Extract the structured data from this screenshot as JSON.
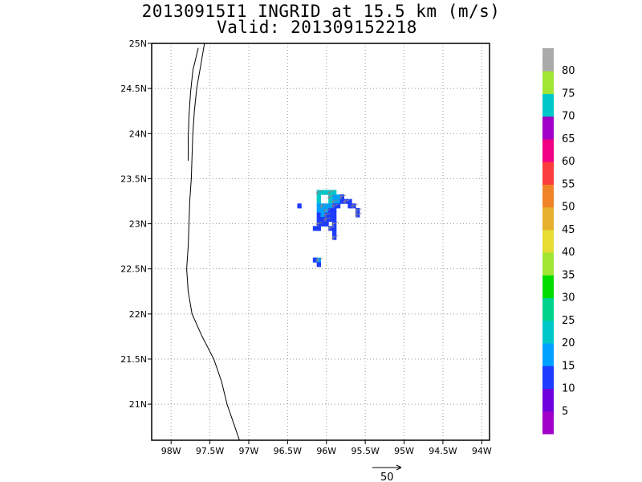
{
  "title": "20130915I1 INGRID at 15.5 km (m/s)",
  "subtitle": "Valid: 201309152218",
  "map": {
    "lon_range": [
      -98.25,
      -93.9
    ],
    "lat_range": [
      20.6,
      25.0
    ],
    "lon_ticks": [
      "98W",
      "97.5W",
      "97W",
      "96.5W",
      "96W",
      "95.5W",
      "95W",
      "94.5W",
      "94W"
    ],
    "lon_tick_values": [
      -98.0,
      -97.5,
      -97.0,
      -96.5,
      -96.0,
      -95.5,
      -95.0,
      -94.5,
      -94.0
    ],
    "lat_ticks": [
      "21N",
      "21.5N",
      "22N",
      "22.5N",
      "23N",
      "23.5N",
      "24N",
      "24.5N",
      "25N"
    ],
    "lat_tick_values": [
      21.0,
      21.5,
      22.0,
      22.5,
      23.0,
      23.5,
      24.0,
      24.5,
      25.0
    ],
    "grid": "dotted",
    "coastline": [
      [
        -97.57,
        25.0
      ],
      [
        -97.62,
        24.75
      ],
      [
        -97.67,
        24.5
      ],
      [
        -97.7,
        24.25
      ],
      [
        -97.72,
        24.0
      ],
      [
        -97.73,
        23.75
      ],
      [
        -97.74,
        23.5
      ],
      [
        -97.76,
        23.25
      ],
      [
        -97.77,
        23.0
      ],
      [
        -97.78,
        22.75
      ],
      [
        -97.8,
        22.5
      ],
      [
        -97.78,
        22.25
      ],
      [
        -97.73,
        22.0
      ],
      [
        -97.6,
        21.75
      ],
      [
        -97.45,
        21.5
      ],
      [
        -97.35,
        21.25
      ],
      [
        -97.28,
        21.0
      ],
      [
        -97.18,
        20.75
      ],
      [
        -97.12,
        20.6
      ]
    ],
    "lagoon": [
      [
        -97.65,
        24.95
      ],
      [
        -97.72,
        24.7
      ],
      [
        -97.75,
        24.45
      ],
      [
        -97.77,
        24.2
      ],
      [
        -97.78,
        23.95
      ],
      [
        -97.78,
        23.7
      ]
    ]
  },
  "wind_cells": [
    {
      "lon": -96.1,
      "lat": 23.35,
      "speed": 20
    },
    {
      "lon": -96.05,
      "lat": 23.35,
      "speed": 20
    },
    {
      "lon": -96.0,
      "lat": 23.35,
      "speed": 20
    },
    {
      "lon": -95.95,
      "lat": 23.35,
      "speed": 20
    },
    {
      "lon": -95.9,
      "lat": 23.35,
      "speed": 20
    },
    {
      "lon": -96.1,
      "lat": 23.3,
      "speed": 20
    },
    {
      "lon": -95.95,
      "lat": 23.3,
      "speed": 20
    },
    {
      "lon": -95.9,
      "lat": 23.3,
      "speed": 15
    },
    {
      "lon": -95.85,
      "lat": 23.3,
      "speed": 15
    },
    {
      "lon": -95.8,
      "lat": 23.3,
      "speed": 10
    },
    {
      "lon": -96.1,
      "lat": 23.25,
      "speed": 20
    },
    {
      "lon": -95.95,
      "lat": 23.25,
      "speed": 20
    },
    {
      "lon": -95.9,
      "lat": 23.25,
      "speed": 15
    },
    {
      "lon": -95.85,
      "lat": 23.25,
      "speed": 15
    },
    {
      "lon": -95.8,
      "lat": 23.25,
      "speed": 10
    },
    {
      "lon": -95.75,
      "lat": 23.25,
      "speed": 10
    },
    {
      "lon": -95.7,
      "lat": 23.25,
      "speed": 10
    },
    {
      "lon": -96.1,
      "lat": 23.2,
      "speed": 15
    },
    {
      "lon": -96.05,
      "lat": 23.2,
      "speed": 15
    },
    {
      "lon": -96.0,
      "lat": 23.2,
      "speed": 15
    },
    {
      "lon": -95.95,
      "lat": 23.2,
      "speed": 15
    },
    {
      "lon": -95.9,
      "lat": 23.2,
      "speed": 10
    },
    {
      "lon": -95.85,
      "lat": 23.2,
      "speed": 10
    },
    {
      "lon": -95.7,
      "lat": 23.2,
      "speed": 10
    },
    {
      "lon": -95.65,
      "lat": 23.2,
      "speed": 10
    },
    {
      "lon": -96.1,
      "lat": 23.15,
      "speed": 15
    },
    {
      "lon": -96.05,
      "lat": 23.15,
      "speed": 15
    },
    {
      "lon": -96.0,
      "lat": 23.15,
      "speed": 15
    },
    {
      "lon": -95.95,
      "lat": 23.15,
      "speed": 10
    },
    {
      "lon": -95.9,
      "lat": 23.15,
      "speed": 10
    },
    {
      "lon": -95.6,
      "lat": 23.15,
      "speed": 10
    },
    {
      "lon": -96.1,
      "lat": 23.1,
      "speed": 10
    },
    {
      "lon": -96.05,
      "lat": 23.1,
      "speed": 15
    },
    {
      "lon": -96.0,
      "lat": 23.1,
      "speed": 10
    },
    {
      "lon": -95.95,
      "lat": 23.1,
      "speed": 10
    },
    {
      "lon": -95.9,
      "lat": 23.1,
      "speed": 10
    },
    {
      "lon": -95.6,
      "lat": 23.1,
      "speed": 10
    },
    {
      "lon": -96.1,
      "lat": 23.05,
      "speed": 10
    },
    {
      "lon": -96.05,
      "lat": 23.05,
      "speed": 10
    },
    {
      "lon": -96.0,
      "lat": 23.05,
      "speed": 10
    },
    {
      "lon": -95.95,
      "lat": 23.05,
      "speed": 10
    },
    {
      "lon": -95.9,
      "lat": 23.05,
      "speed": 10
    },
    {
      "lon": -96.1,
      "lat": 23.0,
      "speed": 10
    },
    {
      "lon": -96.05,
      "lat": 23.0,
      "speed": 10
    },
    {
      "lon": -96.0,
      "lat": 23.0,
      "speed": 10
    },
    {
      "lon": -95.9,
      "lat": 23.0,
      "speed": 10
    },
    {
      "lon": -96.15,
      "lat": 22.95,
      "speed": 10
    },
    {
      "lon": -96.1,
      "lat": 22.95,
      "speed": 10
    },
    {
      "lon": -95.95,
      "lat": 22.95,
      "speed": 10
    },
    {
      "lon": -95.9,
      "lat": 22.95,
      "speed": 10
    },
    {
      "lon": -95.9,
      "lat": 22.9,
      "speed": 10
    },
    {
      "lon": -95.9,
      "lat": 22.85,
      "speed": 10
    },
    {
      "lon": -96.35,
      "lat": 23.2,
      "speed": 10
    },
    {
      "lon": -96.15,
      "lat": 22.6,
      "speed": 10
    },
    {
      "lon": -96.1,
      "lat": 22.6,
      "speed": 15
    },
    {
      "lon": -96.1,
      "lat": 22.55,
      "speed": 10
    }
  ],
  "colorbar": {
    "levels": [
      "5",
      "10",
      "15",
      "20",
      "25",
      "30",
      "35",
      "40",
      "45",
      "50",
      "55",
      "60",
      "65",
      "70",
      "75",
      "80"
    ],
    "colors": [
      "#a000c8",
      "#6e00dc",
      "#1e3cff",
      "#00a0ff",
      "#00c8c8",
      "#00d28c",
      "#00dc00",
      "#a0e632",
      "#e6dc32",
      "#e6af2d",
      "#f08228",
      "#fa3c3c",
      "#f00082",
      "#a000c8",
      "#00c8c8",
      "#a0e632",
      "#aaaaaa"
    ]
  },
  "vector_ref": {
    "label": "50"
  }
}
